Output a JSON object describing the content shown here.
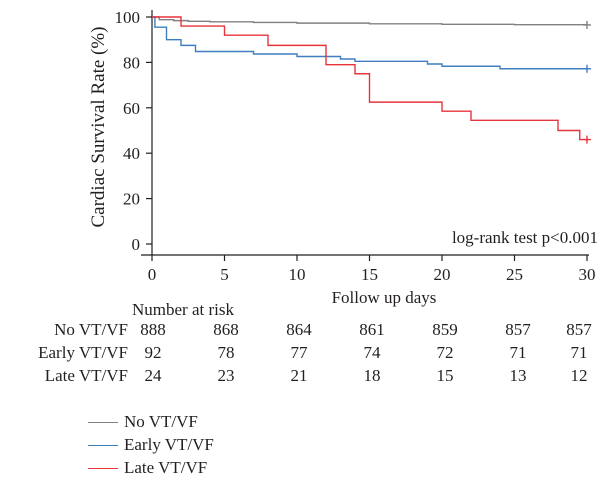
{
  "chart_data": {
    "type": "line",
    "step": true,
    "ylabel": "Cardiac Survival Rate (%)",
    "xlabel": "Follow up days",
    "xlim": [
      0,
      30
    ],
    "ylim": [
      0,
      100
    ],
    "x_ticks": [
      "0",
      "5",
      "10",
      "15",
      "20",
      "25",
      "30"
    ],
    "y_ticks": [
      "0",
      "20",
      "40",
      "60",
      "80",
      "100"
    ],
    "annotation": "log-rank test p<0.001",
    "grid": false,
    "legend_position": "bottom-left",
    "series": [
      {
        "name": "No VT/VF",
        "color": "#808080",
        "points": [
          [
            0,
            100
          ],
          [
            0.5,
            98.8
          ],
          [
            1.5,
            98.4
          ],
          [
            2.5,
            98.1
          ],
          [
            4,
            97.9
          ],
          [
            7,
            97.6
          ],
          [
            10,
            97.3
          ],
          [
            15,
            97.0
          ],
          [
            20,
            96.8
          ],
          [
            25,
            96.6
          ],
          [
            30,
            96.5
          ]
        ],
        "end": [
          30,
          96.5
        ]
      },
      {
        "name": "Early VT/VF",
        "color": "#3f7fc0",
        "points": [
          [
            0,
            100
          ],
          [
            0.2,
            95.5
          ],
          [
            1,
            90
          ],
          [
            2,
            87.5
          ],
          [
            3,
            84.8
          ],
          [
            7,
            83.7
          ],
          [
            10,
            82.6
          ],
          [
            13,
            81.5
          ],
          [
            14,
            80.5
          ],
          [
            19,
            79.3
          ],
          [
            20,
            78.3
          ],
          [
            24,
            77.2
          ],
          [
            30,
            77.2
          ]
        ],
        "end": [
          30,
          77.2
        ]
      },
      {
        "name": "Late VT/VF",
        "color": "#e8343b",
        "points": [
          [
            0,
            100
          ],
          [
            2,
            96
          ],
          [
            5,
            92
          ],
          [
            8,
            87.5
          ],
          [
            12,
            79
          ],
          [
            14,
            75
          ],
          [
            15,
            62.5
          ],
          [
            20,
            58.5
          ],
          [
            22,
            54.5
          ],
          [
            28,
            50
          ],
          [
            29.5,
            46
          ],
          [
            30,
            46
          ]
        ],
        "end": [
          30,
          46
        ]
      }
    ]
  },
  "risk_table": {
    "title": "Number at risk",
    "rows": [
      {
        "label": "No VT/VF",
        "values": [
          "888",
          "868",
          "864",
          "861",
          "859",
          "857",
          "857"
        ]
      },
      {
        "label": "Early VT/VF",
        "values": [
          "92",
          "78",
          "77",
          "74",
          "72",
          "71",
          "71"
        ]
      },
      {
        "label": "Late VT/VF",
        "values": [
          "24",
          "23",
          "21",
          "18",
          "15",
          "13",
          "12"
        ]
      }
    ]
  },
  "legend": [
    {
      "label": "No VT/VF",
      "color": "#808080"
    },
    {
      "label": "Early VT/VF",
      "color": "#3f7fc0"
    },
    {
      "label": "Late VT/VF",
      "color": "#e8343b"
    }
  ]
}
